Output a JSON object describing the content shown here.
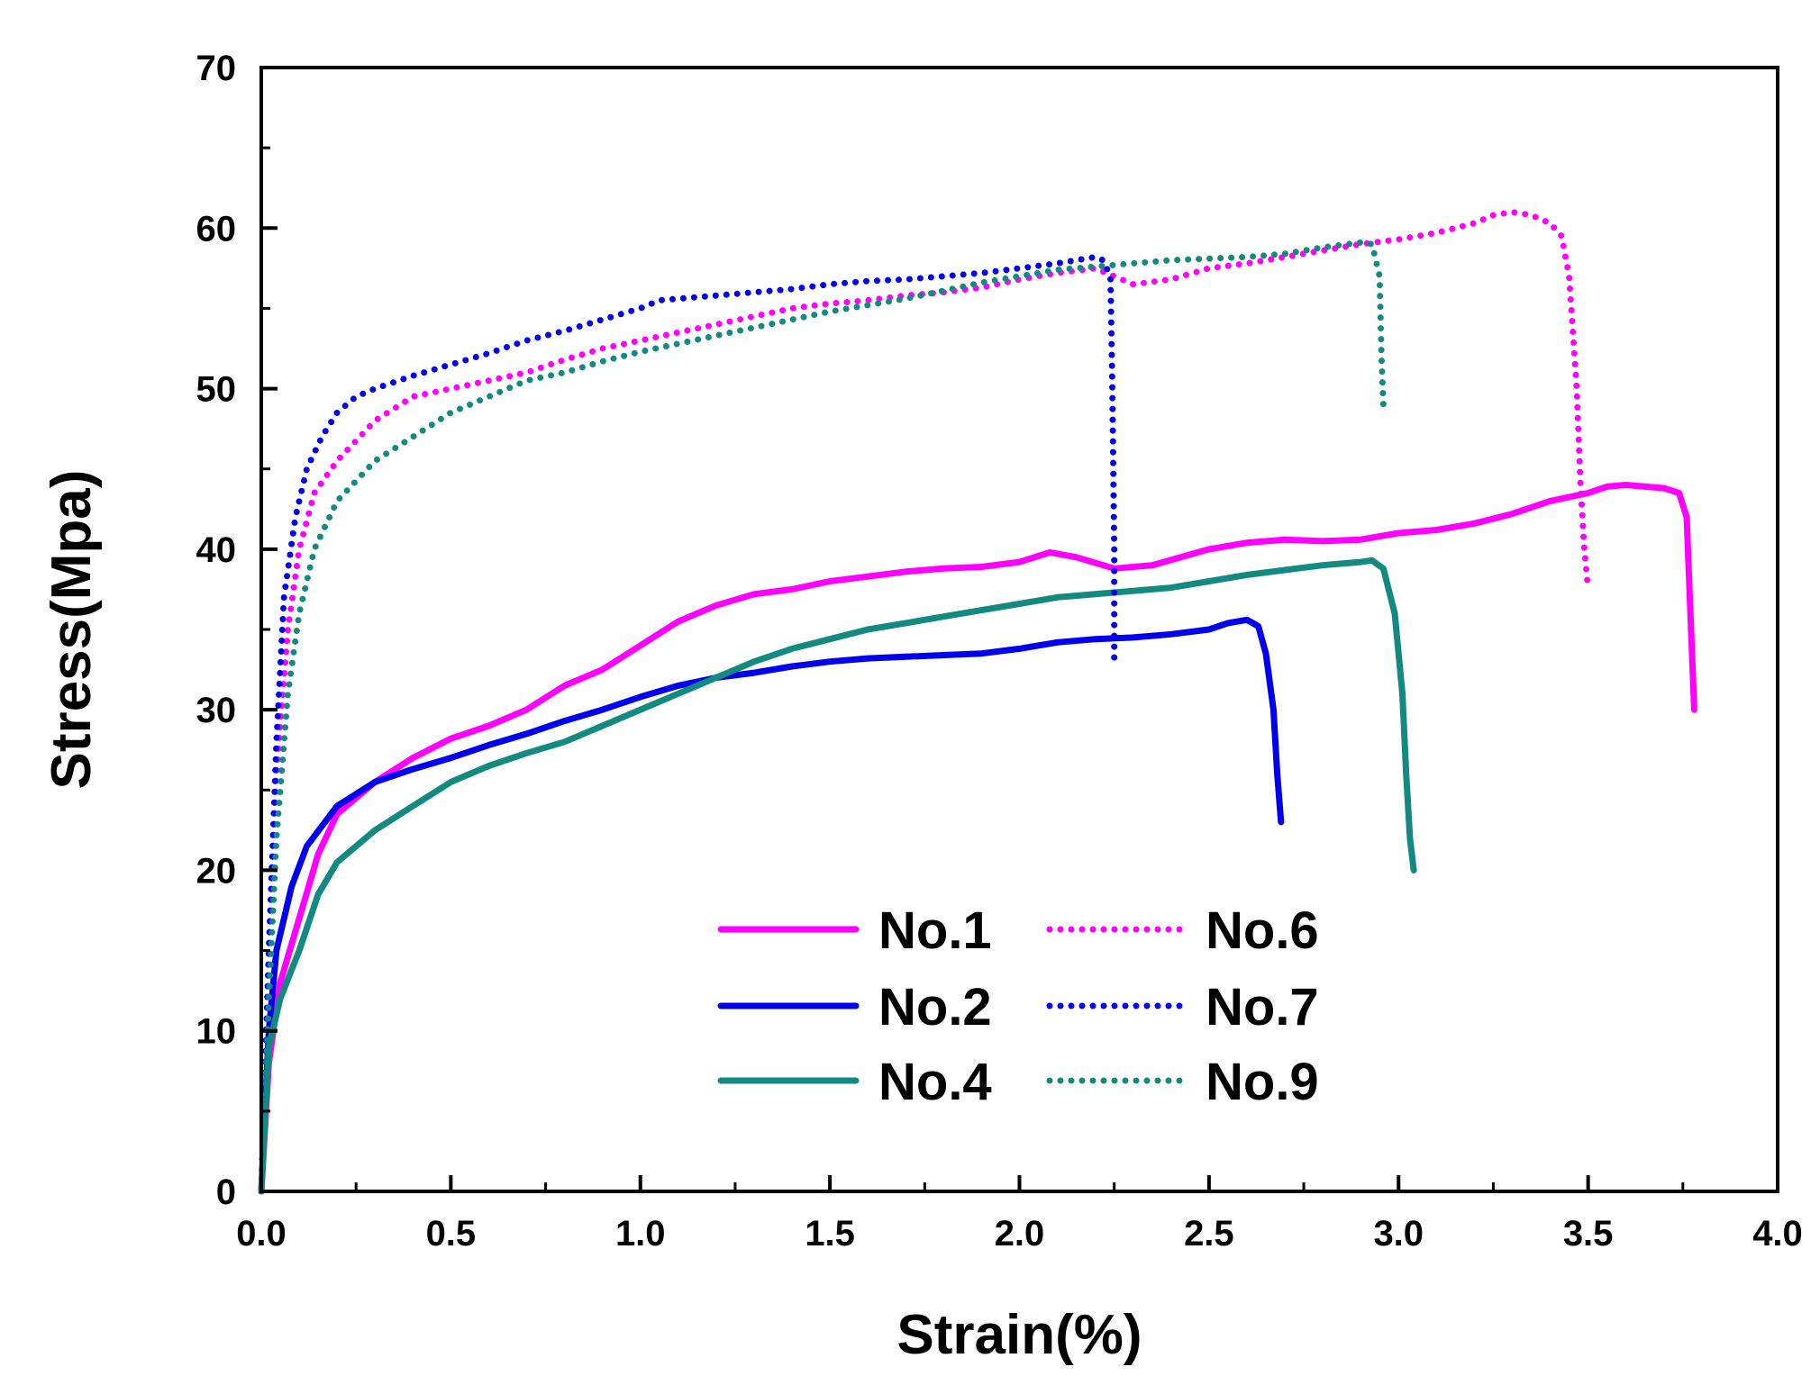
{
  "chart_data": {
    "type": "line",
    "title": "",
    "xlabel": "Strain(%)",
    "ylabel": "Stress(Mpa)",
    "xlim": [
      0,
      4
    ],
    "ylim": [
      0,
      70
    ],
    "xticks": [
      "0.0",
      "0.5",
      "1.0",
      "1.5",
      "2.0",
      "2.5",
      "3.0",
      "3.5",
      "4.0"
    ],
    "yticks": [
      "0",
      "10",
      "20",
      "30",
      "40",
      "50",
      "60",
      "70"
    ],
    "grid": false,
    "legend_position": "bottom-center",
    "series": [
      {
        "name": "No.1",
        "color": "#ff00ff",
        "style": "solid",
        "x": [
          0.0,
          0.02,
          0.05,
          0.1,
          0.15,
          0.2,
          0.3,
          0.4,
          0.5,
          0.6,
          0.7,
          0.8,
          0.9,
          1.0,
          1.1,
          1.2,
          1.3,
          1.4,
          1.5,
          1.6,
          1.7,
          1.8,
          1.9,
          2.0,
          2.08,
          2.15,
          2.25,
          2.35,
          2.5,
          2.6,
          2.7,
          2.8,
          2.9,
          3.0,
          3.1,
          3.2,
          3.3,
          3.4,
          3.5,
          3.55,
          3.6,
          3.7,
          3.74,
          3.76,
          3.77,
          3.78
        ],
        "y": [
          0,
          8,
          13,
          17,
          21,
          23.5,
          25.5,
          27,
          28.2,
          29,
          30,
          31.5,
          32.5,
          34,
          35.5,
          36.5,
          37.2,
          37.5,
          38,
          38.3,
          38.6,
          38.8,
          38.9,
          39.2,
          39.8,
          39.5,
          38.8,
          39,
          40,
          40.4,
          40.6,
          40.5,
          40.6,
          41,
          41.2,
          41.6,
          42.2,
          43,
          43.5,
          43.9,
          44,
          43.8,
          43.5,
          42,
          36,
          30
        ]
      },
      {
        "name": "No.2",
        "color": "#0000ee",
        "style": "solid",
        "x": [
          0.0,
          0.02,
          0.04,
          0.08,
          0.12,
          0.2,
          0.3,
          0.4,
          0.5,
          0.6,
          0.7,
          0.8,
          0.9,
          1.0,
          1.1,
          1.2,
          1.3,
          1.4,
          1.5,
          1.6,
          1.7,
          1.8,
          1.9,
          2.0,
          2.1,
          2.2,
          2.3,
          2.4,
          2.5,
          2.55,
          2.6,
          2.63,
          2.65,
          2.67,
          2.68,
          2.69
        ],
        "y": [
          0,
          10,
          15,
          19,
          21.5,
          24,
          25.5,
          26.3,
          27,
          27.8,
          28.5,
          29.3,
          30,
          30.8,
          31.5,
          32,
          32.3,
          32.7,
          33,
          33.2,
          33.3,
          33.4,
          33.5,
          33.8,
          34.2,
          34.4,
          34.5,
          34.7,
          35,
          35.4,
          35.6,
          35.2,
          33.5,
          30,
          26,
          23
        ]
      },
      {
        "name": "No.4",
        "color": "#138a80",
        "style": "solid",
        "x": [
          0.0,
          0.02,
          0.05,
          0.1,
          0.15,
          0.2,
          0.3,
          0.4,
          0.5,
          0.6,
          0.7,
          0.8,
          0.9,
          1.0,
          1.1,
          1.2,
          1.3,
          1.4,
          1.5,
          1.6,
          1.7,
          1.8,
          1.9,
          2.0,
          2.1,
          2.2,
          2.3,
          2.4,
          2.5,
          2.6,
          2.7,
          2.8,
          2.85,
          2.9,
          2.93,
          2.96,
          2.99,
          3.01,
          3.02,
          3.03,
          3.04
        ],
        "y": [
          0,
          9,
          12,
          15,
          18.5,
          20.5,
          22.5,
          24,
          25.5,
          26.5,
          27.3,
          28,
          29,
          30,
          31,
          32,
          33,
          33.8,
          34.4,
          35,
          35.4,
          35.8,
          36.2,
          36.6,
          37,
          37.2,
          37.4,
          37.6,
          38,
          38.4,
          38.7,
          39,
          39.1,
          39.2,
          39.3,
          38.8,
          36,
          31,
          26,
          22,
          20
        ]
      },
      {
        "name": "No.6",
        "color": "#ff00ff",
        "style": "dotted",
        "x": [
          0.0,
          0.02,
          0.04,
          0.07,
          0.1,
          0.14,
          0.2,
          0.3,
          0.4,
          0.5,
          0.6,
          0.7,
          0.8,
          0.9,
          1.0,
          1.1,
          1.2,
          1.3,
          1.4,
          1.5,
          1.6,
          1.7,
          1.8,
          1.9,
          2.0,
          2.1,
          2.2,
          2.3,
          2.4,
          2.5,
          2.6,
          2.7,
          2.8,
          2.9,
          3.0,
          3.1,
          3.2,
          3.25,
          3.3,
          3.35,
          3.4,
          3.43,
          3.45,
          3.47,
          3.48,
          3.49,
          3.5
        ],
        "y": [
          0,
          15,
          26,
          35,
          40,
          43.5,
          45.5,
          48,
          49.5,
          50,
          50.5,
          51,
          51.8,
          52.5,
          53,
          53.5,
          54,
          54.5,
          55,
          55.3,
          55.5,
          55.8,
          56,
          56.3,
          56.8,
          57.2,
          57.5,
          56.5,
          56.8,
          57.5,
          57.8,
          58.2,
          58.6,
          59,
          59.3,
          59.7,
          60.3,
          60.8,
          61,
          60.8,
          60.3,
          59.5,
          57,
          50,
          44,
          40,
          37.5
        ]
      },
      {
        "name": "No.7",
        "color": "#0000ee",
        "style": "dotted",
        "x": [
          0.0,
          0.02,
          0.04,
          0.06,
          0.09,
          0.12,
          0.16,
          0.2,
          0.25,
          0.3,
          0.4,
          0.5,
          0.6,
          0.7,
          0.8,
          0.9,
          1.0,
          1.05,
          1.1,
          1.2,
          1.3,
          1.4,
          1.5,
          1.6,
          1.7,
          1.8,
          1.9,
          2.0,
          2.1,
          2.15,
          2.2,
          2.22,
          2.24,
          2.245,
          2.25,
          2.25
        ],
        "y": [
          0,
          15,
          28,
          37,
          42,
          45,
          47,
          48.5,
          49.5,
          50,
          50.8,
          51.5,
          52.2,
          53,
          53.6,
          54.3,
          55,
          55.5,
          55.6,
          55.8,
          56,
          56.2,
          56.5,
          56.7,
          56.8,
          57,
          57.2,
          57.5,
          57.8,
          58,
          58.2,
          58,
          57,
          50,
          40,
          33
        ]
      },
      {
        "name": "No.9",
        "color": "#138a80",
        "style": "dotted",
        "x": [
          0.0,
          0.02,
          0.04,
          0.07,
          0.1,
          0.14,
          0.2,
          0.3,
          0.4,
          0.5,
          0.6,
          0.7,
          0.8,
          0.9,
          1.0,
          1.1,
          1.2,
          1.3,
          1.4,
          1.5,
          1.6,
          1.7,
          1.8,
          1.9,
          2.0,
          2.1,
          2.2,
          2.3,
          2.4,
          2.5,
          2.6,
          2.7,
          2.8,
          2.9,
          2.93,
          2.95,
          2.955,
          2.96
        ],
        "y": [
          0,
          12,
          22,
          31,
          36,
          40,
          43,
          45.5,
          47,
          48.5,
          49.5,
          50.5,
          51,
          51.7,
          52.3,
          52.8,
          53.3,
          53.8,
          54.3,
          54.8,
          55.2,
          55.6,
          56.1,
          56.6,
          57,
          57.4,
          57.6,
          57.8,
          58,
          58.1,
          58.2,
          58.4,
          58.8,
          59.1,
          59,
          57,
          52,
          49
        ]
      }
    ]
  }
}
